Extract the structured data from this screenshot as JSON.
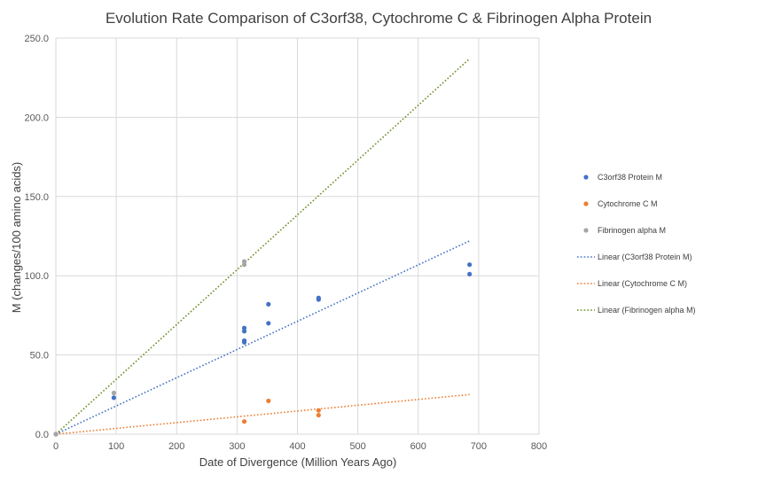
{
  "chart_data": {
    "type": "scatter",
    "title": "Evolution Rate Comparison of C3orf38, Cytochrome C & Fibrinogen Alpha Protein",
    "xlabel": "Date of Divergence (Million Years Ago)",
    "ylabel": "M (changes/100 amino acids)",
    "xlim": [
      0,
      800
    ],
    "ylim": [
      0,
      250
    ],
    "xticks": [
      0,
      100,
      200,
      300,
      400,
      500,
      600,
      700,
      800
    ],
    "yticks": [
      0,
      50,
      100,
      150,
      200,
      250
    ],
    "xtick_labels": [
      "0",
      "100",
      "200",
      "300",
      "400",
      "500",
      "600",
      "700",
      "800"
    ],
    "ytick_labels": [
      "0.0",
      "50.0",
      "100.0",
      "150.0",
      "200.0",
      "250.0"
    ],
    "grid": true,
    "legend_position": "right",
    "series": [
      {
        "name": "C3orf38 Protein M",
        "kind": "scatter",
        "color": "#4472C4",
        "points": [
          [
            0,
            0
          ],
          [
            96,
            23
          ],
          [
            312,
            59
          ],
          [
            312,
            58
          ],
          [
            312,
            65
          ],
          [
            312,
            67
          ],
          [
            352,
            70
          ],
          [
            352,
            82
          ],
          [
            435,
            85
          ],
          [
            435,
            86
          ],
          [
            685,
            101
          ],
          [
            685,
            107
          ]
        ]
      },
      {
        "name": "Cytochrome C M",
        "kind": "scatter",
        "color": "#ED7D31",
        "points": [
          [
            0,
            0
          ],
          [
            312,
            8
          ],
          [
            352,
            21
          ],
          [
            435,
            12
          ],
          [
            435,
            15
          ]
        ]
      },
      {
        "name": "Fibrinogen alpha M",
        "kind": "scatter",
        "color": "#A5A5A5",
        "points": [
          [
            0,
            0
          ],
          [
            96,
            26
          ],
          [
            312,
            107
          ],
          [
            312,
            109
          ]
        ]
      },
      {
        "name": "Linear (C3orf38 Protein M)",
        "kind": "trendline",
        "color": "#4472C4",
        "points": [
          [
            0,
            0
          ],
          [
            685,
            122
          ]
        ]
      },
      {
        "name": "Linear (Cytochrome C M)",
        "kind": "trendline",
        "color": "#ED7D31",
        "points": [
          [
            0,
            0
          ],
          [
            685,
            25
          ]
        ]
      },
      {
        "name": "Linear (Fibrinogen alpha M)",
        "kind": "trendline",
        "color": "#6B8E23",
        "points": [
          [
            0,
            0
          ],
          [
            685,
            237
          ]
        ]
      }
    ]
  }
}
